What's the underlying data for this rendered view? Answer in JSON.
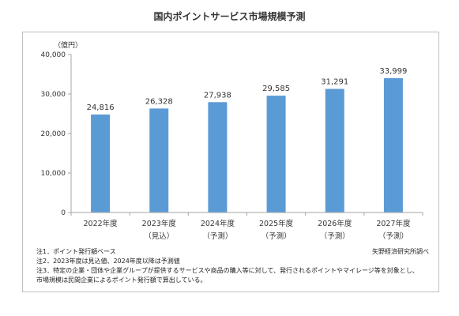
{
  "title": "国内ポイントサービス市場規模予測",
  "source": "矢野経済研究所調べ",
  "notes": [
    "注1．ポイント発行額ベース",
    "注2．2023年度は見込値、2024年度以降は予測値",
    "注3．特定の企業・団体や企業グループが提供するサービスや商品の購入等に対して、発行されるポイントやマイレージ等を対象とし、",
    "市場規模は民間企業によるポイント発行額で算出している。"
  ],
  "colors": {
    "bar": "#5b9bd5",
    "axis": "#a6a6a6",
    "frame": "#bfbfbf"
  },
  "chart_data": {
    "type": "bar",
    "title": "国内ポイントサービス市場規模予測",
    "unit_label": "（億円）",
    "categories": [
      "2022年度",
      "2023年度",
      "2024年度",
      "2025年度",
      "2026年度",
      "2027年度"
    ],
    "category_sublabels": [
      "",
      "（見込）",
      "（予測）",
      "（予測）",
      "（予測）",
      "（予測）"
    ],
    "values": [
      24816,
      26328,
      27938,
      29585,
      31291,
      33999
    ],
    "value_labels": [
      "24,816",
      "26,328",
      "27,938",
      "29,585",
      "31,291",
      "33,999"
    ],
    "ylim": [
      0,
      40000
    ],
    "yticks": [
      0,
      10000,
      20000,
      30000,
      40000
    ],
    "ytick_labels": [
      "0",
      "10,000",
      "20,000",
      "30,000",
      "40,000"
    ],
    "grid": false,
    "legend": "none"
  }
}
